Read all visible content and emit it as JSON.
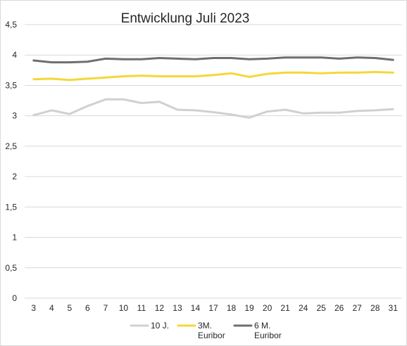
{
  "chart_data": {
    "type": "line",
    "title": "Entwicklung Juli 2023",
    "xlabel": "",
    "ylabel": "",
    "categories": [
      "3",
      "4",
      "5",
      "6",
      "7",
      "10",
      "11",
      "12",
      "13",
      "14",
      "17",
      "18",
      "19",
      "20",
      "21",
      "24",
      "25",
      "26",
      "27",
      "28",
      "31"
    ],
    "ylim": [
      0,
      4.5
    ],
    "yticks": [
      "0",
      "0,5",
      "1",
      "1,5",
      "2",
      "2,5",
      "3",
      "3,5",
      "4",
      "4,5"
    ],
    "grid": true,
    "legend_position": "bottom",
    "series": [
      {
        "name": "10 J.",
        "color": "#d0d0d0",
        "values": [
          3.01,
          3.09,
          3.03,
          3.16,
          3.27,
          3.27,
          3.21,
          3.23,
          3.1,
          3.09,
          3.06,
          3.02,
          2.97,
          3.07,
          3.1,
          3.04,
          3.05,
          3.05,
          3.08,
          3.09,
          3.11
        ]
      },
      {
        "name": "3M. Euribor",
        "legend_lines": [
          "3M.",
          "Euribor"
        ],
        "color": "#f5d738",
        "values": [
          3.6,
          3.61,
          3.59,
          3.61,
          3.63,
          3.65,
          3.66,
          3.65,
          3.65,
          3.65,
          3.67,
          3.7,
          3.64,
          3.69,
          3.71,
          3.71,
          3.7,
          3.71,
          3.71,
          3.72,
          3.71
        ]
      },
      {
        "name": "6 M. Euribor",
        "legend_lines": [
          "6 M.",
          "Euribor"
        ],
        "color": "#6e6e6e",
        "values": [
          3.91,
          3.88,
          3.88,
          3.89,
          3.94,
          3.93,
          3.93,
          3.95,
          3.94,
          3.93,
          3.95,
          3.95,
          3.93,
          3.94,
          3.96,
          3.96,
          3.96,
          3.94,
          3.96,
          3.95,
          3.92
        ]
      }
    ]
  }
}
